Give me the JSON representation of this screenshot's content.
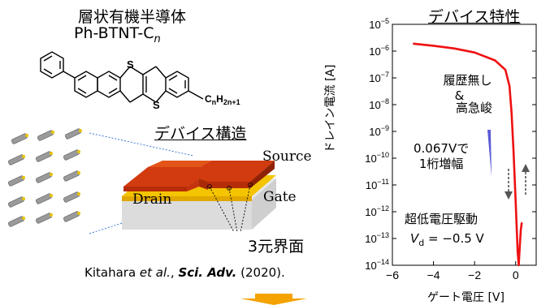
{
  "molecule": {
    "title_line1": "層状有機半導体",
    "title_line2_main": "Ph-BTNT-C",
    "title_line2_sub": "n",
    "atom_s1": "S",
    "atom_s2": "S",
    "chain_main": "C",
    "chain_sub1": "n",
    "chain_mid": "H",
    "chain_sub2": "2n+1"
  },
  "device": {
    "title": "デバイス構造",
    "source_label": "Source",
    "drain_label": "Drain",
    "gate_label": "Gate",
    "interface_label": "3元界面"
  },
  "citation": {
    "authors": "Kitahara",
    "etal": " et al.",
    "sep": ", ",
    "journal": "Sci. Adv.",
    "year": " (2020)."
  },
  "plot": {
    "title": "デバイス特性",
    "ylabel": "ドレイン電流 [A]",
    "xlabel": "ゲート電圧 [V]",
    "ann_nohys_line1": "履歴無し",
    "ann_amp": "&",
    "ann_nohys_line2": "高急峻",
    "ann_slope_line1": "0.067Vで",
    "ann_slope_line2": "1桁増幅",
    "ann_lowv": "超低電圧駆動",
    "ann_vd_main": "V",
    "ann_vd_sub": "d",
    "ann_vd_val": " = −0.5 V"
  },
  "chart_data": {
    "type": "line",
    "title": "デバイス特性",
    "xlabel": "ゲート電圧 [V]",
    "ylabel": "ドレイン電流 [A]",
    "xlim": [
      -6,
      1
    ],
    "ylim_log10": [
      -14,
      -5
    ],
    "y_scale": "log",
    "x_ticks": [
      -6,
      -4,
      -2,
      0
    ],
    "x_tick_labels": [
      "−6",
      "−4",
      "−2",
      "0"
    ],
    "y_ticks_log10": [
      -14,
      -13,
      -12,
      -11,
      -10,
      -9,
      -8,
      -7,
      -6,
      -5
    ],
    "series": [
      {
        "color": "#ee1111",
        "x": [
          -5.0,
          -4.0,
          -3.0,
          -2.0,
          -1.0,
          -0.5,
          -0.3,
          -0.2,
          -0.1,
          0.0,
          0.1,
          0.15,
          0.2,
          0.25,
          0.3
        ],
        "log10_y": [
          -5.72,
          -5.8,
          -5.9,
          -6.05,
          -6.35,
          -6.7,
          -7.3,
          -8.3,
          -9.8,
          -11.6,
          -13.5,
          -14.0,
          -13.3,
          -12.7,
          -12.4
        ]
      }
    ],
    "sweep_arrows": [
      "down",
      "up"
    ],
    "colors": {
      "curve": "#ee1111",
      "slope_marker": "#5b5bd6"
    }
  }
}
